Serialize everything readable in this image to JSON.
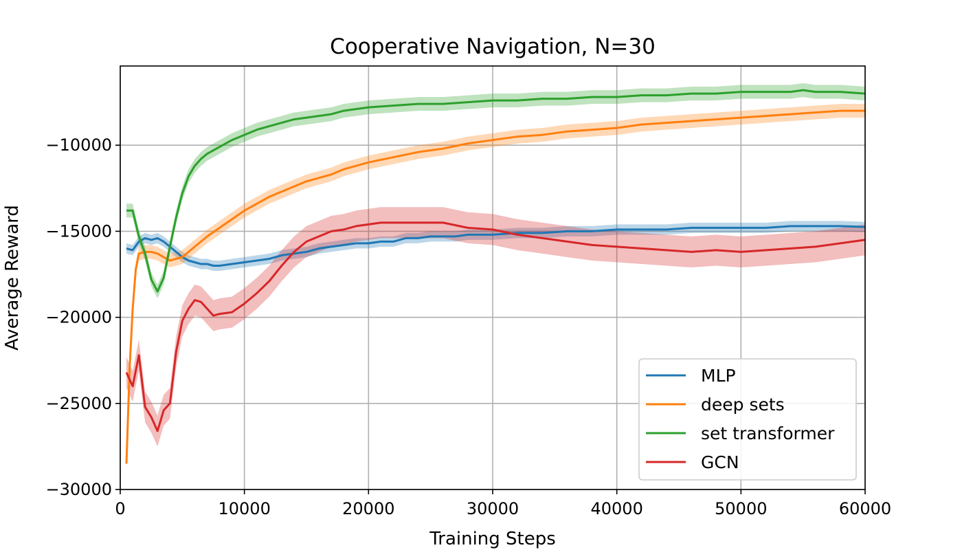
{
  "chart_data": {
    "type": "line",
    "title": "Cooperative Navigation, N=30",
    "xlabel": "Training Steps",
    "ylabel": "Average Reward",
    "xlim": [
      0,
      60000
    ],
    "ylim": [
      -30000,
      -5400
    ],
    "xticks": [
      0,
      10000,
      20000,
      30000,
      40000,
      50000,
      60000
    ],
    "xtick_labels": [
      "0",
      "10000",
      "20000",
      "30000",
      "40000",
      "50000",
      "60000"
    ],
    "yticks": [
      -30000,
      -25000,
      -20000,
      -15000,
      -10000
    ],
    "ytick_labels": [
      "−30000",
      "−25000",
      "−20000",
      "−15000",
      "−10000"
    ],
    "grid": true,
    "legend_position": "lower-right",
    "series": [
      {
        "name": "MLP",
        "color": "#1f77b4",
        "band": 300,
        "x": [
          500,
          1000,
          1500,
          2000,
          2500,
          3000,
          3500,
          4000,
          4500,
          5000,
          5500,
          6000,
          6500,
          7000,
          7500,
          8000,
          9000,
          10000,
          11000,
          12000,
          13000,
          14000,
          15000,
          16000,
          17000,
          18000,
          19000,
          20000,
          21000,
          22000,
          23000,
          24000,
          25000,
          26000,
          27000,
          28000,
          29000,
          30000,
          32000,
          34000,
          36000,
          38000,
          40000,
          42000,
          44000,
          46000,
          48000,
          50000,
          52000,
          54000,
          56000,
          58000,
          60000
        ],
        "y": [
          -16000,
          -16100,
          -15600,
          -15400,
          -15500,
          -15400,
          -15600,
          -15900,
          -16200,
          -16500,
          -16700,
          -16800,
          -16900,
          -16900,
          -17000,
          -17000,
          -16900,
          -16800,
          -16700,
          -16600,
          -16400,
          -16300,
          -16200,
          -16000,
          -15900,
          -15800,
          -15700,
          -15700,
          -15600,
          -15600,
          -15400,
          -15400,
          -15300,
          -15300,
          -15300,
          -15200,
          -15200,
          -15200,
          -15100,
          -15100,
          -15000,
          -15000,
          -14900,
          -14900,
          -14900,
          -14800,
          -14800,
          -14800,
          -14800,
          -14700,
          -14700,
          -14700,
          -14750
        ]
      },
      {
        "name": "deep sets",
        "color": "#ff7f0e",
        "band": 400,
        "x": [
          500,
          750,
          1000,
          1250,
          1500,
          2000,
          2500,
          3000,
          3500,
          4000,
          4500,
          5000,
          6000,
          7000,
          8000,
          9000,
          10000,
          11000,
          12000,
          13000,
          14000,
          15000,
          16000,
          17000,
          18000,
          19000,
          20000,
          22000,
          24000,
          26000,
          28000,
          30000,
          32000,
          34000,
          36000,
          38000,
          40000,
          42000,
          44000,
          46000,
          48000,
          50000,
          52000,
          54000,
          56000,
          58000,
          60000
        ],
        "y": [
          -28500,
          -23000,
          -19500,
          -17200,
          -16300,
          -16200,
          -16200,
          -16300,
          -16500,
          -16700,
          -16600,
          -16500,
          -15900,
          -15300,
          -14800,
          -14300,
          -13800,
          -13400,
          -13000,
          -12700,
          -12400,
          -12100,
          -11900,
          -11700,
          -11400,
          -11200,
          -11000,
          -10700,
          -10400,
          -10200,
          -9900,
          -9700,
          -9500,
          -9400,
          -9200,
          -9100,
          -9000,
          -8800,
          -8700,
          -8600,
          -8500,
          -8400,
          -8300,
          -8200,
          -8100,
          -8000,
          -8000
        ]
      },
      {
        "name": "set transformer",
        "color": "#2ca02c",
        "band": 400,
        "x": [
          500,
          1000,
          1500,
          2000,
          2500,
          3000,
          3500,
          4000,
          4500,
          5000,
          5500,
          6000,
          6500,
          7000,
          7500,
          8000,
          9000,
          10000,
          11000,
          12000,
          13000,
          14000,
          15000,
          16000,
          17000,
          18000,
          19000,
          20000,
          22000,
          24000,
          26000,
          28000,
          30000,
          32000,
          34000,
          36000,
          38000,
          40000,
          42000,
          44000,
          46000,
          48000,
          50000,
          52000,
          54000,
          55000,
          56000,
          58000,
          60000
        ],
        "y": [
          -13800,
          -13800,
          -15300,
          -16300,
          -17800,
          -18500,
          -17700,
          -15900,
          -14200,
          -12800,
          -11800,
          -11200,
          -10800,
          -10500,
          -10300,
          -10100,
          -9700,
          -9400,
          -9100,
          -8900,
          -8700,
          -8500,
          -8400,
          -8300,
          -8200,
          -8000,
          -7900,
          -7800,
          -7700,
          -7600,
          -7600,
          -7500,
          -7400,
          -7400,
          -7300,
          -7300,
          -7200,
          -7200,
          -7100,
          -7100,
          -7000,
          -7000,
          -6900,
          -6900,
          -6900,
          -6800,
          -6900,
          -6900,
          -7000
        ]
      },
      {
        "name": "GCN",
        "color": "#d62728",
        "band": 900,
        "x": [
          500,
          1000,
          1500,
          2000,
          2500,
          3000,
          3500,
          4000,
          4500,
          5000,
          5500,
          6000,
          6500,
          7000,
          7500,
          8000,
          9000,
          10000,
          11000,
          12000,
          13000,
          14000,
          15000,
          16000,
          17000,
          18000,
          19000,
          20000,
          21000,
          22000,
          24000,
          26000,
          28000,
          30000,
          32000,
          34000,
          36000,
          38000,
          40000,
          42000,
          44000,
          46000,
          48000,
          50000,
          52000,
          54000,
          56000,
          58000,
          60000
        ],
        "y": [
          -23200,
          -24000,
          -22200,
          -25200,
          -25800,
          -26600,
          -25400,
          -25000,
          -22000,
          -20200,
          -19500,
          -19000,
          -19100,
          -19500,
          -19900,
          -19800,
          -19700,
          -19200,
          -18600,
          -17900,
          -17000,
          -16200,
          -15600,
          -15300,
          -15000,
          -14900,
          -14700,
          -14600,
          -14500,
          -14500,
          -14500,
          -14500,
          -14800,
          -14900,
          -15200,
          -15400,
          -15600,
          -15800,
          -15900,
          -16000,
          -16100,
          -16200,
          -16100,
          -16200,
          -16100,
          -16000,
          -15900,
          -15700,
          -15500
        ]
      }
    ]
  }
}
